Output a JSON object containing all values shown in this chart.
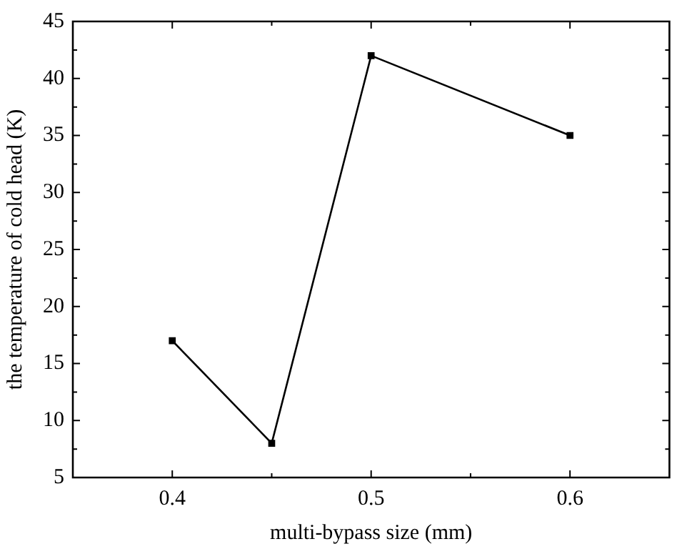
{
  "chart_data": {
    "type": "line",
    "xlabel": "multi-bypass size (mm)",
    "ylabel": "the temperature of cold head (K)",
    "x": [
      0.4,
      0.45,
      0.5,
      0.6
    ],
    "series": [
      {
        "color": "#000000",
        "values": [
          17,
          8,
          42,
          35
        ]
      }
    ],
    "xlim": [
      0.35,
      0.65
    ],
    "xticks": [
      0.4,
      {
        "value": 0.45,
        "label": null
      },
      0.5,
      {
        "value": 0.55,
        "label": null
      },
      0.6
    ],
    "ylim": [
      5,
      45
    ],
    "yticks": [
      5,
      {
        "value": 7.5,
        "label": null
      },
      10,
      {
        "value": 12.5,
        "label": null
      },
      15,
      {
        "value": 17.5,
        "label": null
      },
      20,
      {
        "value": 22.5,
        "label": null
      },
      25,
      {
        "value": 27.5,
        "label": null
      },
      30,
      {
        "value": 32.5,
        "label": null
      },
      35,
      {
        "value": 37.5,
        "label": null
      },
      40,
      {
        "value": 42.5,
        "label": null
      },
      45
    ],
    "grid": false,
    "legend": false,
    "marker": "square",
    "line_style": "solid"
  }
}
